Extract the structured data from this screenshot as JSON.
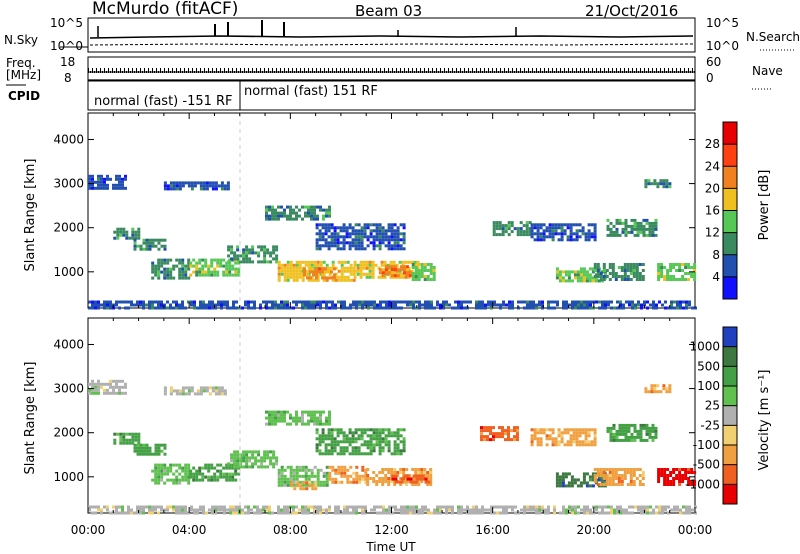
{
  "header": {
    "station": "McMurdo (fitACF)",
    "beam": "Beam 03",
    "date": "21/Oct/2016"
  },
  "top_panels": {
    "nsky": {
      "label": "N.Sky",
      "ticks": [
        "10^5",
        "10^0"
      ],
      "right_label": "N.Search",
      "right_ticks": [
        "10^5",
        "10^0"
      ]
    },
    "freq": {
      "label_line1": "Freq.",
      "label_line2": "[MHz]",
      "ticks": [
        "18",
        "8"
      ],
      "right_label": "Nave",
      "right_ticks": [
        "60",
        "0"
      ]
    },
    "cpid": {
      "label": "CPID",
      "modes": [
        {
          "text": "normal (fast) -151 RF",
          "start_hour": 0,
          "end_hour": 6.0
        },
        {
          "text": "normal (fast) 151 RF",
          "start_hour": 6.0,
          "end_hour": 24
        }
      ]
    }
  },
  "chart_data": [
    {
      "type": "heatmap",
      "title": "",
      "xlabel": "",
      "ylabel": "Slant Range [km]",
      "xlim": [
        0,
        24
      ],
      "ylim": [
        180,
        4600
      ],
      "yticks": [
        "1000",
        "2000",
        "3000",
        "4000"
      ],
      "colorbar_label": "Power [dB]",
      "colorbar_ticks": [
        "4",
        "8",
        "12",
        "16",
        "20",
        "24",
        "28"
      ],
      "colorbar_colors": [
        "#1010ff",
        "#2250b0",
        "#3a8a60",
        "#55c855",
        "#f0c020",
        "#f08020",
        "#ff4010",
        "#e80000"
      ],
      "patches": [
        {
          "hour_start": 0.0,
          "hour_end": 1.5,
          "range_start": 2900,
          "range_end": 3200,
          "level": 1
        },
        {
          "hour_start": 3.0,
          "hour_end": 5.5,
          "range_start": 2850,
          "range_end": 3050,
          "level": 1
        },
        {
          "hour_start": 1.0,
          "hour_end": 2.0,
          "range_start": 1750,
          "range_end": 2000,
          "level": 2
        },
        {
          "hour_start": 1.8,
          "hour_end": 3.0,
          "range_start": 1500,
          "range_end": 1750,
          "level": 2
        },
        {
          "hour_start": 2.5,
          "hour_end": 4.0,
          "range_start": 850,
          "range_end": 1300,
          "level": 2
        },
        {
          "hour_start": 4.0,
          "hour_end": 6.0,
          "range_start": 900,
          "range_end": 1300,
          "level": 3
        },
        {
          "hour_start": 5.5,
          "hour_end": 7.5,
          "range_start": 1200,
          "range_end": 1600,
          "level": 2
        },
        {
          "hour_start": 7.0,
          "hour_end": 9.5,
          "range_start": 2200,
          "range_end": 2500,
          "level": 2
        },
        {
          "hour_start": 7.5,
          "hour_end": 10.5,
          "range_start": 800,
          "range_end": 1250,
          "level": 4
        },
        {
          "hour_start": 8.5,
          "hour_end": 9.8,
          "range_start": 850,
          "range_end": 1100,
          "level": 5
        },
        {
          "hour_start": 10.5,
          "hour_end": 13.0,
          "range_start": 850,
          "range_end": 1250,
          "level": 4
        },
        {
          "hour_start": 11.5,
          "hour_end": 12.8,
          "range_start": 900,
          "range_end": 1150,
          "level": 5
        },
        {
          "hour_start": 12.8,
          "hour_end": 13.7,
          "range_start": 850,
          "range_end": 1200,
          "level": 3
        },
        {
          "hour_start": 9.0,
          "hour_end": 12.5,
          "range_start": 1500,
          "range_end": 2100,
          "level": 1
        },
        {
          "hour_start": 16.0,
          "hour_end": 17.5,
          "range_start": 1850,
          "range_end": 2150,
          "level": 2
        },
        {
          "hour_start": 17.5,
          "hour_end": 20.0,
          "range_start": 1700,
          "range_end": 2100,
          "level": 1
        },
        {
          "hour_start": 18.5,
          "hour_end": 20.5,
          "range_start": 800,
          "range_end": 1100,
          "level": 3
        },
        {
          "hour_start": 20.5,
          "hour_end": 22.5,
          "range_start": 1800,
          "range_end": 2200,
          "level": 2
        },
        {
          "hour_start": 20.0,
          "hour_end": 22.0,
          "range_start": 800,
          "range_end": 1200,
          "level": 2
        },
        {
          "hour_start": 22.5,
          "hour_end": 24.0,
          "range_start": 800,
          "range_end": 1200,
          "level": 3
        },
        {
          "hour_start": 22.0,
          "hour_end": 23.0,
          "range_start": 2900,
          "range_end": 3100,
          "level": 2
        },
        {
          "hour_start": 0.0,
          "hour_end": 24.0,
          "range_start": 200,
          "range_end": 350,
          "level": 1
        }
      ]
    },
    {
      "type": "heatmap",
      "title": "",
      "xlabel": "Time UT",
      "ylabel": "Slant Range [km]",
      "xlim": [
        0,
        24
      ],
      "ylim": [
        180,
        4600
      ],
      "xticks": [
        "00:00",
        "04:00",
        "08:00",
        "12:00",
        "16:00",
        "20:00",
        "00:00"
      ],
      "yticks": [
        "1000",
        "2000",
        "3000",
        "4000"
      ],
      "colorbar_label": "Velocity [m s⁻¹]",
      "colorbar_ticks": [
        "1000",
        "500",
        "100",
        "25",
        "-25",
        "-100",
        "-500",
        "-1000"
      ],
      "colorbar_colors": [
        "#2040c0",
        "#3c7840",
        "#44a044",
        "#60c050",
        "#b0b0b0",
        "#f0d070",
        "#f0a040",
        "#f06020",
        "#e80000"
      ],
      "patches": [
        {
          "hour_start": 0.0,
          "hour_end": 1.5,
          "range_start": 2900,
          "range_end": 3200,
          "level": 4
        },
        {
          "hour_start": 3.0,
          "hour_end": 5.5,
          "range_start": 2850,
          "range_end": 3050,
          "level": 4
        },
        {
          "hour_start": 1.0,
          "hour_end": 2.0,
          "range_start": 1750,
          "range_end": 2000,
          "level": 2
        },
        {
          "hour_start": 1.8,
          "hour_end": 3.0,
          "range_start": 1500,
          "range_end": 1750,
          "level": 2
        },
        {
          "hour_start": 2.5,
          "hour_end": 4.0,
          "range_start": 850,
          "range_end": 1300,
          "level": 3
        },
        {
          "hour_start": 4.0,
          "hour_end": 6.0,
          "range_start": 900,
          "range_end": 1300,
          "level": 2
        },
        {
          "hour_start": 5.5,
          "hour_end": 7.5,
          "range_start": 1200,
          "range_end": 1600,
          "level": 3
        },
        {
          "hour_start": 7.0,
          "hour_end": 9.5,
          "range_start": 2200,
          "range_end": 2500,
          "level": 3
        },
        {
          "hour_start": 7.5,
          "hour_end": 9.5,
          "range_start": 800,
          "range_end": 1250,
          "level": 3
        },
        {
          "hour_start": 8.0,
          "hour_end": 9.0,
          "range_start": 700,
          "range_end": 900,
          "level": 6
        },
        {
          "hour_start": 9.5,
          "hour_end": 11.0,
          "range_start": 850,
          "range_end": 1250,
          "level": 6
        },
        {
          "hour_start": 11.0,
          "hour_end": 13.5,
          "range_start": 800,
          "range_end": 1200,
          "level": 6
        },
        {
          "hour_start": 12.0,
          "hour_end": 13.5,
          "range_start": 850,
          "range_end": 1050,
          "level": 7
        },
        {
          "hour_start": 9.0,
          "hour_end": 12.5,
          "range_start": 1500,
          "range_end": 2100,
          "level": 2
        },
        {
          "hour_start": 15.5,
          "hour_end": 17.0,
          "range_start": 1850,
          "range_end": 2150,
          "level": 7
        },
        {
          "hour_start": 17.5,
          "hour_end": 20.0,
          "range_start": 1700,
          "range_end": 2100,
          "level": 6
        },
        {
          "hour_start": 18.5,
          "hour_end": 20.5,
          "range_start": 800,
          "range_end": 1100,
          "level": 1
        },
        {
          "hour_start": 20.5,
          "hour_end": 22.5,
          "range_start": 1800,
          "range_end": 2200,
          "level": 2
        },
        {
          "hour_start": 20.0,
          "hour_end": 22.0,
          "range_start": 800,
          "range_end": 1200,
          "level": 6
        },
        {
          "hour_start": 22.5,
          "hour_end": 24.0,
          "range_start": 800,
          "range_end": 1200,
          "level": 8
        },
        {
          "hour_start": 22.0,
          "hour_end": 23.0,
          "range_start": 2900,
          "range_end": 3100,
          "level": 6
        },
        {
          "hour_start": 0.0,
          "hour_end": 24.0,
          "range_start": 200,
          "range_end": 350,
          "level": 4
        }
      ]
    }
  ]
}
